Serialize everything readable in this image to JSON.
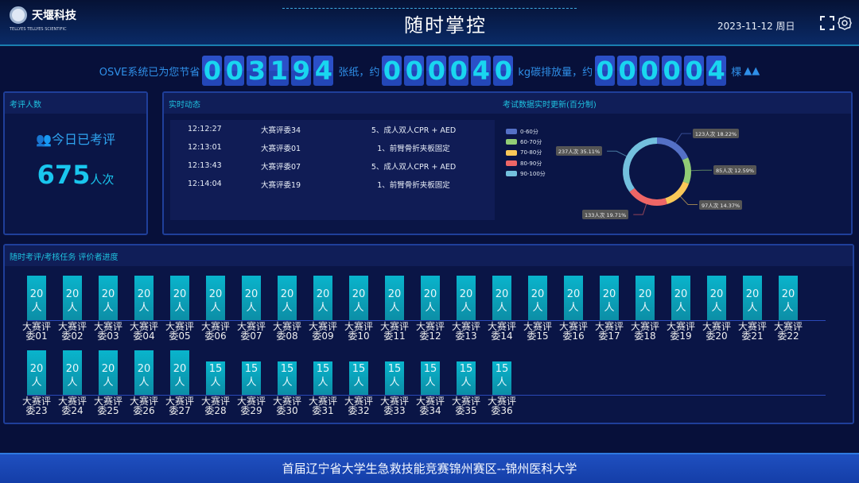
{
  "header": {
    "logo_cn": "天堰科技",
    "logo_en": "TELLYES  TELLYES SCIENTIFIC",
    "title": "随时掌控",
    "date": "2023-11-12  周日",
    "icons": [
      "fullscreen-icon",
      "settings-icon"
    ]
  },
  "counter": {
    "prefix": "OSVE系统已为您节省",
    "paper_digits": [
      "0",
      "0",
      "3",
      "1",
      "9",
      "4"
    ],
    "paper_unit": "张纸，约",
    "carbon_digits": [
      "0",
      "0",
      "0",
      "0",
      "4",
      "0"
    ],
    "carbon_unit": "kg碳排放量，约",
    "tree_digits": [
      "0",
      "0",
      "0",
      "0",
      "0",
      "4"
    ],
    "tree_unit": "棵"
  },
  "panel_count": {
    "title": "考评人数",
    "label": "今日已考评",
    "value": "675",
    "unit": "人次"
  },
  "panel_feed": {
    "title": "实时动态",
    "rows": [
      [
        "12:12:27",
        "大赛评委34",
        "5、成人双人CPR + AED"
      ],
      [
        "12:13:01",
        "大赛评委01",
        "1、前臂骨折夹板固定"
      ],
      [
        "12:13:43",
        "大赛评委07",
        "5、成人双人CPR + AED"
      ],
      [
        "12:14:04",
        "大赛评委19",
        "1、前臂骨折夹板固定"
      ]
    ]
  },
  "chart_data": [
    {
      "type": "pie",
      "title": "考试数据实时更新(百分制)",
      "legend_position": "left",
      "categories": [
        "0-60分",
        "60-70分",
        "70-80分",
        "80-90分",
        "90-100分"
      ],
      "values": [
        123,
        85,
        97,
        133,
        237
      ],
      "labels": [
        "123人次 18.22%",
        "85人次 12.59%",
        "97人次 14.37%",
        "133人次 19.71%",
        "237人次 35.11%"
      ],
      "colors": [
        "#5470c6",
        "#91cc75",
        "#fac858",
        "#ee6666",
        "#73c0de"
      ]
    },
    {
      "type": "bar",
      "title": "随时考评/考核任务 评价者进度",
      "unit": "人",
      "categories": [
        "大赛评委01",
        "大赛评委02",
        "大赛评委03",
        "大赛评委04",
        "大赛评委05",
        "大赛评委06",
        "大赛评委07",
        "大赛评委08",
        "大赛评委09",
        "大赛评委10",
        "大赛评委11",
        "大赛评委12",
        "大赛评委13",
        "大赛评委14",
        "大赛评委15",
        "大赛评委16",
        "大赛评委17",
        "大赛评委18",
        "大赛评委19",
        "大赛评委20",
        "大赛评委21",
        "大赛评委22",
        "大赛评委23",
        "大赛评委24",
        "大赛评委25",
        "大赛评委26",
        "大赛评委27",
        "大赛评委28",
        "大赛评委29",
        "大赛评委30",
        "大赛评委31",
        "大赛评委32",
        "大赛评委33",
        "大赛评委34",
        "大赛评委35",
        "大赛评委36"
      ],
      "values": [
        20,
        20,
        20,
        20,
        20,
        20,
        20,
        20,
        20,
        20,
        20,
        20,
        20,
        20,
        20,
        20,
        20,
        20,
        20,
        20,
        20,
        20,
        20,
        20,
        20,
        20,
        20,
        15,
        15,
        15,
        15,
        15,
        15,
        15,
        15,
        15
      ]
    }
  ],
  "footer": {
    "text": "首届辽宁省大学生急救技能竞赛锦州赛区--锦州医科大学"
  }
}
